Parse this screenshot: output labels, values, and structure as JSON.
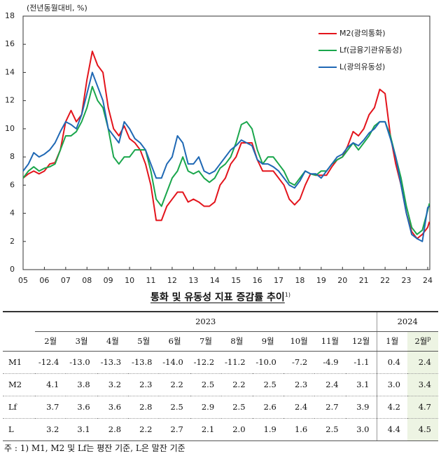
{
  "chart_data": {
    "type": "line",
    "y_unit": "(전년동월대비, %)",
    "xlim": [
      2005,
      2024.1
    ],
    "xticks": [
      {
        "value": 2005,
        "label": "05"
      },
      {
        "value": 2006,
        "label": "06"
      },
      {
        "value": 2007,
        "label": "07"
      },
      {
        "value": 2008,
        "label": "08"
      },
      {
        "value": 2009,
        "label": "09"
      },
      {
        "value": 2010,
        "label": "10"
      },
      {
        "value": 2011,
        "label": "11"
      },
      {
        "value": 2012,
        "label": "12"
      },
      {
        "value": 2013,
        "label": "13"
      },
      {
        "value": 2014,
        "label": "14"
      },
      {
        "value": 2015,
        "label": "15"
      },
      {
        "value": 2016,
        "label": "16"
      },
      {
        "value": 2017,
        "label": "17"
      },
      {
        "value": 2018,
        "label": "18"
      },
      {
        "value": 2019,
        "label": "19"
      },
      {
        "value": 2020,
        "label": "20"
      },
      {
        "value": 2021,
        "label": "21"
      },
      {
        "value": 2022,
        "label": "22"
      },
      {
        "value": 2023,
        "label": "23"
      },
      {
        "value": 2024,
        "label": "24"
      }
    ],
    "ylim": [
      0,
      18
    ],
    "yticks": [
      0,
      2,
      4,
      6,
      8,
      10,
      12,
      14,
      16,
      18
    ],
    "grid": false,
    "legend": "upper right",
    "x": [
      2005,
      2005.25,
      2005.5,
      2005.75,
      2006,
      2006.25,
      2006.5,
      2006.75,
      2007,
      2007.25,
      2007.5,
      2007.75,
      2008,
      2008.25,
      2008.5,
      2008.75,
      2009,
      2009.25,
      2009.5,
      2009.75,
      2010,
      2010.25,
      2010.5,
      2010.75,
      2011,
      2011.25,
      2011.5,
      2011.75,
      2012,
      2012.25,
      2012.5,
      2012.75,
      2013,
      2013.25,
      2013.5,
      2013.75,
      2014,
      2014.25,
      2014.5,
      2014.75,
      2015,
      2015.25,
      2015.5,
      2015.75,
      2016,
      2016.25,
      2016.5,
      2016.75,
      2017,
      2017.25,
      2017.5,
      2017.75,
      2018,
      2018.25,
      2018.5,
      2018.75,
      2019,
      2019.25,
      2019.5,
      2019.75,
      2020,
      2020.25,
      2020.5,
      2020.75,
      2021,
      2021.25,
      2021.5,
      2021.75,
      2022,
      2022.25,
      2022.5,
      2022.75,
      2023,
      2023.25,
      2023.5,
      2023.75,
      2024,
      2024.08
    ],
    "series": [
      {
        "name": "M2(광의통화)",
        "color": "#e3141c",
        "values": [
          6.5,
          6.8,
          7.0,
          6.8,
          7.0,
          7.5,
          7.6,
          8.5,
          10.5,
          11.3,
          10.5,
          11.0,
          13.5,
          15.5,
          14.5,
          14.0,
          11.5,
          10.0,
          9.5,
          10.2,
          9.3,
          9.0,
          8.5,
          7.5,
          6.0,
          3.5,
          3.5,
          4.5,
          5.0,
          5.5,
          5.5,
          4.8,
          5.0,
          4.8,
          4.5,
          4.5,
          4.8,
          6.0,
          6.5,
          7.5,
          8.0,
          9.0,
          9.0,
          9.0,
          7.8,
          7.0,
          7.0,
          7.0,
          6.5,
          6.0,
          5.0,
          4.6,
          5.0,
          6.0,
          6.8,
          6.7,
          6.7,
          6.7,
          7.3,
          7.8,
          8.0,
          8.8,
          9.8,
          9.5,
          10.0,
          11.0,
          11.5,
          12.8,
          12.5,
          9.5,
          7.5,
          6.0,
          4.0,
          2.7,
          2.2,
          2.5,
          3.0,
          3.4
        ]
      },
      {
        "name": "Lf(금융기관유동성)",
        "color": "#1aa64c",
        "values": [
          6.5,
          7.0,
          7.3,
          7.0,
          7.2,
          7.3,
          7.5,
          8.5,
          9.5,
          9.5,
          9.8,
          10.5,
          11.5,
          13.0,
          12.0,
          11.5,
          10.0,
          8.0,
          7.5,
          8.0,
          8.0,
          8.5,
          8.5,
          8.5,
          7.0,
          5.0,
          4.5,
          5.5,
          6.5,
          7.0,
          8.0,
          7.0,
          6.8,
          7.0,
          6.5,
          6.2,
          6.5,
          7.2,
          7.5,
          8.0,
          9.0,
          10.3,
          10.5,
          10.0,
          8.5,
          7.5,
          8.0,
          8.0,
          7.5,
          7.0,
          6.2,
          6.0,
          6.5,
          7.0,
          6.8,
          6.7,
          7.0,
          7.0,
          7.5,
          7.8,
          8.0,
          8.5,
          9.0,
          8.5,
          9.0,
          9.5,
          10.2,
          10.5,
          10.5,
          9.5,
          8.0,
          6.5,
          4.5,
          3.0,
          2.5,
          2.8,
          4.2,
          4.7
        ]
      },
      {
        "name": "L(광의유동성)",
        "color": "#1f68b4",
        "values": [
          7.0,
          7.5,
          8.3,
          8.0,
          8.2,
          8.5,
          9.0,
          9.8,
          10.5,
          10.3,
          10.0,
          11.0,
          12.5,
          14.0,
          13.0,
          12.0,
          10.0,
          9.5,
          9.0,
          10.5,
          10.0,
          9.3,
          9.0,
          8.5,
          7.5,
          6.5,
          6.5,
          7.5,
          8.0,
          9.5,
          9.0,
          7.5,
          7.5,
          8.0,
          7.0,
          6.8,
          7.0,
          7.5,
          8.0,
          8.5,
          8.8,
          9.2,
          9.0,
          8.8,
          7.8,
          7.5,
          7.5,
          7.3,
          7.0,
          6.5,
          6.0,
          5.8,
          6.3,
          7.0,
          6.8,
          6.8,
          6.5,
          7.0,
          7.5,
          8.0,
          8.2,
          8.7,
          9.0,
          8.8,
          9.2,
          9.7,
          10.0,
          10.5,
          10.5,
          9.3,
          8.0,
          6.0,
          4.0,
          2.5,
          2.2,
          2.0,
          4.4,
          4.5
        ]
      }
    ]
  },
  "table": {
    "title": "통화 및 유동성 지표 증감률 추이",
    "title_note": "1)",
    "years": [
      "2023",
      "2024"
    ],
    "months": [
      "2월",
      "3월",
      "4월",
      "5월",
      "6월",
      "7월",
      "8월",
      "9월",
      "10월",
      "11월",
      "12월",
      "1월",
      "2월"
    ],
    "prelim_mark": "p",
    "rows": [
      {
        "label": "M1",
        "values": [
          "-12.4",
          "-13.0",
          "-13.3",
          "-13.8",
          "-14.0",
          "-12.2",
          "-11.2",
          "-10.0",
          "-7.2",
          "-4.9",
          "-1.1",
          "0.4",
          "2.4"
        ]
      },
      {
        "label": "M2",
        "values": [
          "4.1",
          "3.8",
          "3.2",
          "2.3",
          "2.2",
          "2.5",
          "2.2",
          "2.5",
          "2.3",
          "2.4",
          "3.1",
          "3.0",
          "3.4"
        ]
      },
      {
        "label": "Lf",
        "values": [
          "3.7",
          "3.6",
          "3.6",
          "2.8",
          "2.5",
          "2.9",
          "2.5",
          "2.6",
          "2.4",
          "2.7",
          "3.9",
          "4.2",
          "4.7"
        ]
      },
      {
        "label": "L",
        "values": [
          "3.2",
          "3.1",
          "2.8",
          "2.2",
          "2.7",
          "2.1",
          "2.0",
          "1.9",
          "1.6",
          "2.5",
          "3.0",
          "4.4",
          "4.5"
        ]
      }
    ]
  },
  "footnote": "주 : 1) M1, M2 및 Lf는 평잔 기준, L은 말잔 기준"
}
